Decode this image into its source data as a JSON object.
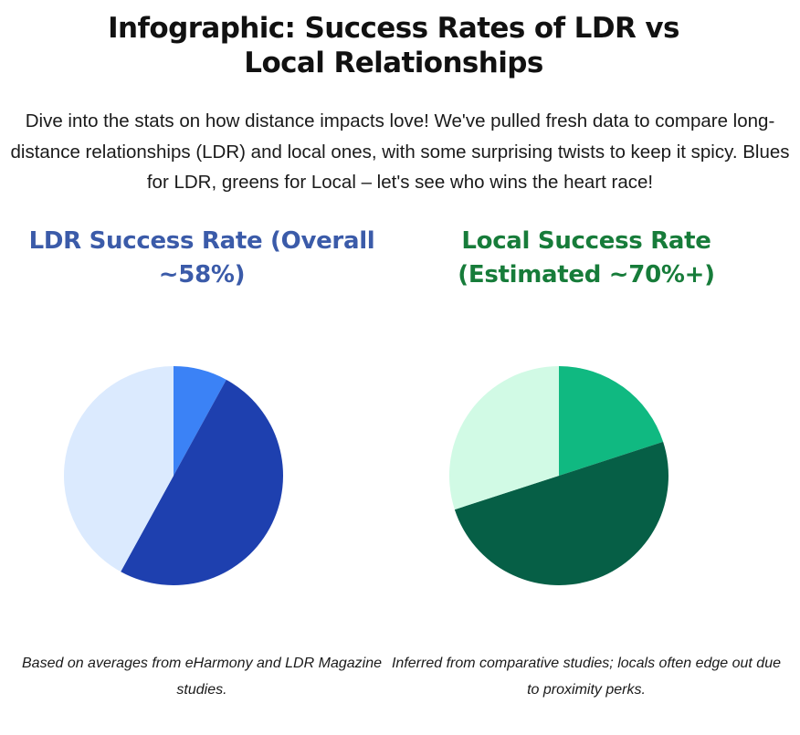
{
  "title": "Infographic: Success Rates of LDR vs Local Relationships",
  "intro": "Dive into the stats on how distance impacts love! We've pulled fresh data to compare long-distance relationships (LDR) and local ones, with some surprising twists to keep it spicy. Blues for LDR, greens for Local – let's see who wins the heart race!",
  "panels": [
    {
      "heading": "LDR Success Rate (Overall ~58%)",
      "caption": "Based on averages from eHarmony and LDR Magazine studies.",
      "accent": "#3b5ba9"
    },
    {
      "heading": "Local Success Rate (Estimated ~70%+)",
      "caption": "Inferred from comparative studies; locals often edge out due to proximity perks.",
      "accent": "#177c3a"
    }
  ],
  "chart_data": [
    {
      "type": "pie",
      "start": "top",
      "direction": "clockwise",
      "slices": [
        {
          "value": 8,
          "color": "#3b82f6"
        },
        {
          "value": 50,
          "color": "#1e40af"
        },
        {
          "value": 42,
          "color": "#dbeafe"
        }
      ]
    },
    {
      "type": "pie",
      "start": "top",
      "direction": "clockwise",
      "slices": [
        {
          "value": 20,
          "color": "#10b981"
        },
        {
          "value": 50,
          "color": "#065f46"
        },
        {
          "value": 30,
          "color": "#d1fae5"
        }
      ]
    }
  ]
}
